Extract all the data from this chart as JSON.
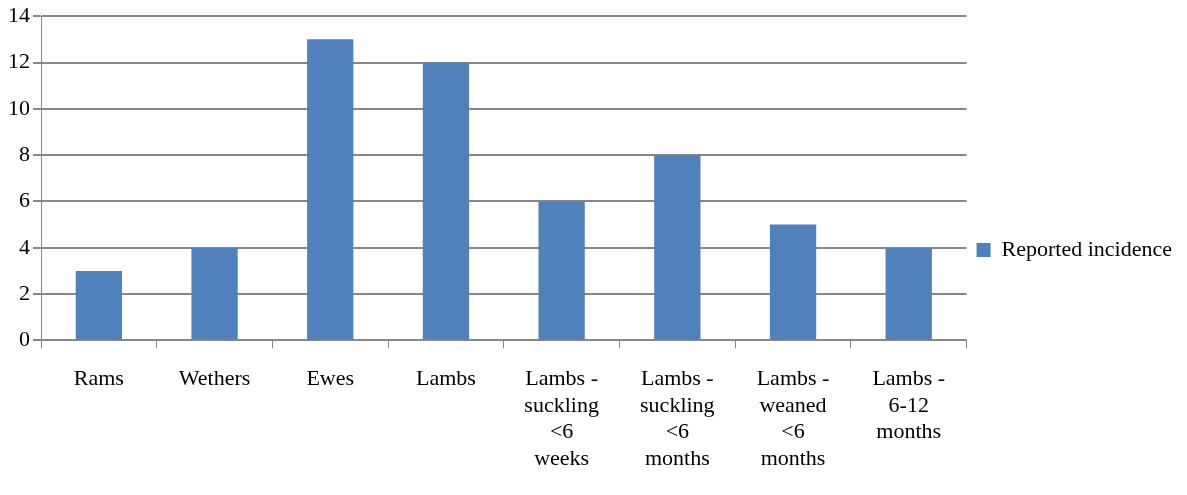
{
  "chart_data": {
    "type": "bar",
    "categories": [
      "Rams",
      "Wethers",
      "Ewes",
      "Lambs",
      "Lambs - suckling <6 weeks",
      "Lambs - suckling <6 months",
      "Lambs - weaned <6 months",
      "Lambs - 6-12 months"
    ],
    "series": [
      {
        "name": "Reported incidence",
        "color": "#4f81bd",
        "values": [
          3,
          4,
          13,
          12,
          6,
          8,
          5,
          4
        ]
      }
    ],
    "ylim": [
      0,
      14
    ],
    "yticks": [
      0,
      2,
      4,
      6,
      8,
      10,
      12,
      14
    ],
    "grid": "y",
    "legend": "right"
  }
}
